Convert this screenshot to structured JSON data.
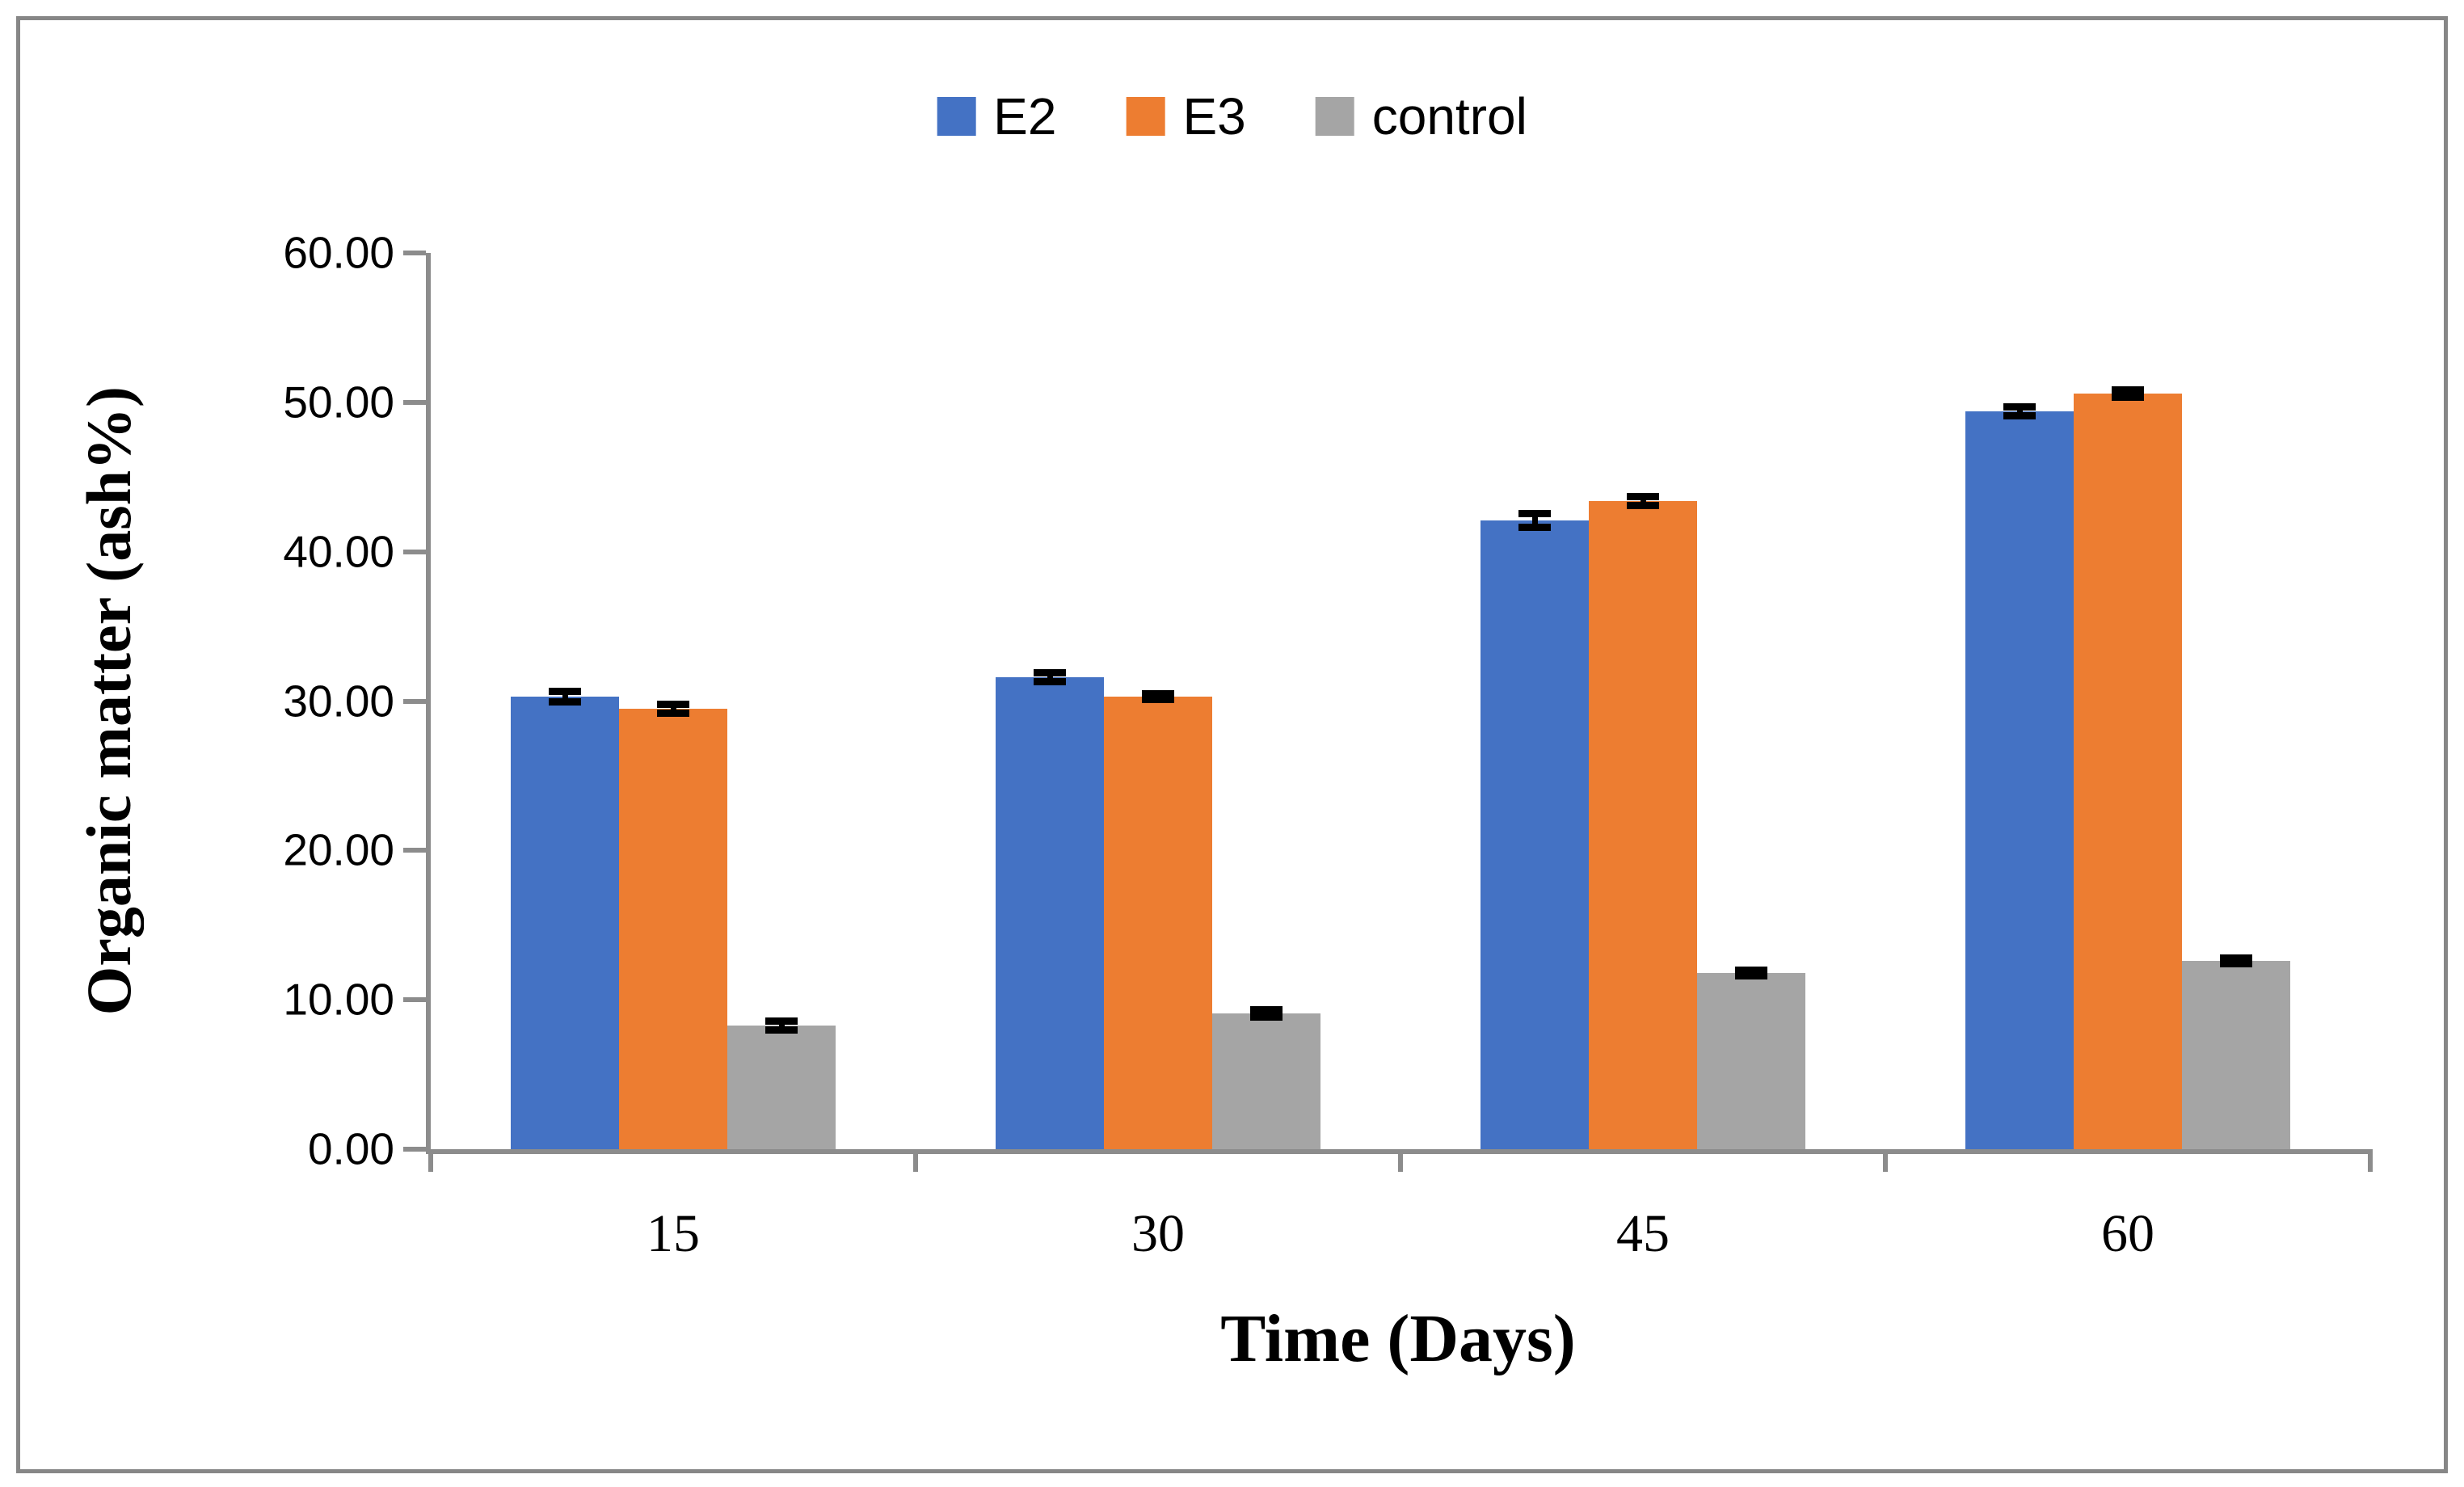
{
  "chart_data": {
    "type": "bar",
    "title": "",
    "categories": [
      "15",
      "30",
      "45",
      "60"
    ],
    "series": [
      {
        "name": "E2",
        "color": "#4472C4",
        "values": [
          30.3,
          31.6,
          42.1,
          49.4
        ],
        "errors": [
          0.35,
          0.3,
          0.45,
          0.3
        ]
      },
      {
        "name": "E3",
        "color": "#ED7D31",
        "values": [
          29.5,
          30.3,
          43.4,
          50.6
        ],
        "errors": [
          0.3,
          0.2,
          0.3,
          0.25
        ]
      },
      {
        "name": "control",
        "color": "#A5A5A5",
        "values": [
          8.3,
          9.1,
          11.8,
          12.6
        ],
        "errors": [
          0.3,
          0.25,
          0.2,
          0.2
        ]
      }
    ],
    "xlabel": "Time (Days)",
    "ylabel": "Organic matter (ash%)",
    "ylim": [
      0,
      60
    ],
    "ytick_step": 10,
    "ytick_labels": [
      "0.00",
      "10.00",
      "20.00",
      "30.00",
      "40.00",
      "50.00",
      "60.00"
    ],
    "legend_position": "top-center",
    "grid": false,
    "error_bars": true,
    "axis_color": "#8C8C8C",
    "frame_border_color": "#878787"
  }
}
